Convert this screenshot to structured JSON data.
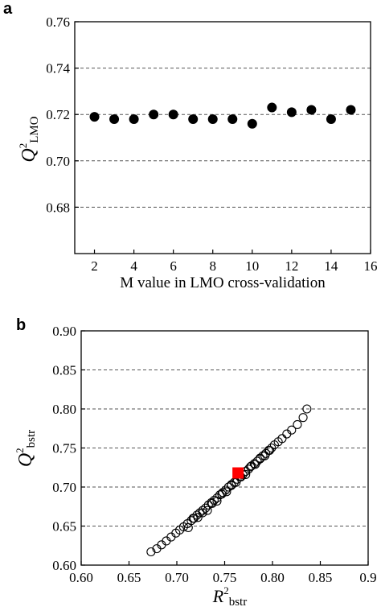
{
  "chart_data": [
    {
      "panel": "a",
      "type": "scatter",
      "xlabel": "M value in LMO cross-validation",
      "ylabel_main": "Q",
      "ylabel_sup": "2",
      "ylabel_sub": "LMO",
      "xlim": [
        1,
        16
      ],
      "ylim": [
        0.66,
        0.76
      ],
      "xticks": [
        2,
        4,
        6,
        8,
        10,
        12,
        14,
        16
      ],
      "yticks": [
        0.68,
        0.7,
        0.72,
        0.74,
        0.76
      ],
      "ytick_labels": [
        "0.68",
        "0.70",
        "0.72",
        "0.74",
        "0.76"
      ],
      "grid": "horizontal-dashed",
      "marker": "filled-circle",
      "color": "#000000",
      "x": [
        2,
        3,
        4,
        5,
        6,
        7,
        8,
        9,
        10,
        11,
        12,
        13,
        14,
        15
      ],
      "y": [
        0.719,
        0.718,
        0.718,
        0.72,
        0.72,
        0.718,
        0.718,
        0.718,
        0.716,
        0.723,
        0.721,
        0.722,
        0.718,
        0.722
      ]
    },
    {
      "panel": "b",
      "type": "scatter",
      "xlabel_main": "R",
      "xlabel_sup": "2",
      "xlabel_sub": "bstr",
      "ylabel_main": "Q",
      "ylabel_sup": "2",
      "ylabel_sub": "bstr",
      "xlim": [
        0.6,
        0.9
      ],
      "ylim": [
        0.6,
        0.9
      ],
      "xticks": [
        0.6,
        0.65,
        0.7,
        0.75,
        0.8,
        0.85,
        0.9
      ],
      "xtick_labels": [
        "0.60",
        "0.65",
        "0.70",
        "0.75",
        "0.80",
        "0.85",
        "0.9"
      ],
      "yticks": [
        0.6,
        0.65,
        0.7,
        0.75,
        0.8,
        0.85,
        0.9
      ],
      "ytick_labels": [
        "0.60",
        "0.65",
        "0.70",
        "0.75",
        "0.80",
        "0.85",
        "0.90"
      ],
      "grid": "horizontal-dashed",
      "marker": "open-circle",
      "color": "#000000",
      "highlight_color": "#ff0000",
      "x": [
        0.673,
        0.679,
        0.684,
        0.689,
        0.694,
        0.699,
        0.703,
        0.707,
        0.711,
        0.715,
        0.718,
        0.721,
        0.724,
        0.727,
        0.73,
        0.733,
        0.736,
        0.739,
        0.742,
        0.745,
        0.748,
        0.751,
        0.754,
        0.757,
        0.76,
        0.763,
        0.766,
        0.769,
        0.772,
        0.775,
        0.778,
        0.781,
        0.784,
        0.787,
        0.79,
        0.793,
        0.796,
        0.799,
        0.802,
        0.806,
        0.81,
        0.815,
        0.82,
        0.826,
        0.832,
        0.836,
        0.712,
        0.722,
        0.732,
        0.742,
        0.752,
        0.762,
        0.772,
        0.782,
        0.792,
        0.717,
        0.727,
        0.737,
        0.747,
        0.757,
        0.767,
        0.777,
        0.787,
        0.797
      ],
      "y": [
        0.617,
        0.621,
        0.626,
        0.631,
        0.636,
        0.641,
        0.645,
        0.649,
        0.653,
        0.657,
        0.66,
        0.664,
        0.667,
        0.67,
        0.673,
        0.677,
        0.68,
        0.683,
        0.686,
        0.69,
        0.693,
        0.696,
        0.7,
        0.703,
        0.706,
        0.71,
        0.713,
        0.716,
        0.72,
        0.723,
        0.727,
        0.73,
        0.733,
        0.737,
        0.74,
        0.743,
        0.747,
        0.75,
        0.754,
        0.758,
        0.762,
        0.768,
        0.773,
        0.78,
        0.789,
        0.8,
        0.648,
        0.661,
        0.67,
        0.682,
        0.694,
        0.706,
        0.716,
        0.729,
        0.74,
        0.66,
        0.667,
        0.679,
        0.691,
        0.702,
        0.713,
        0.726,
        0.736,
        0.747
      ],
      "highlight": {
        "x": 0.764,
        "y": 0.718
      }
    }
  ]
}
